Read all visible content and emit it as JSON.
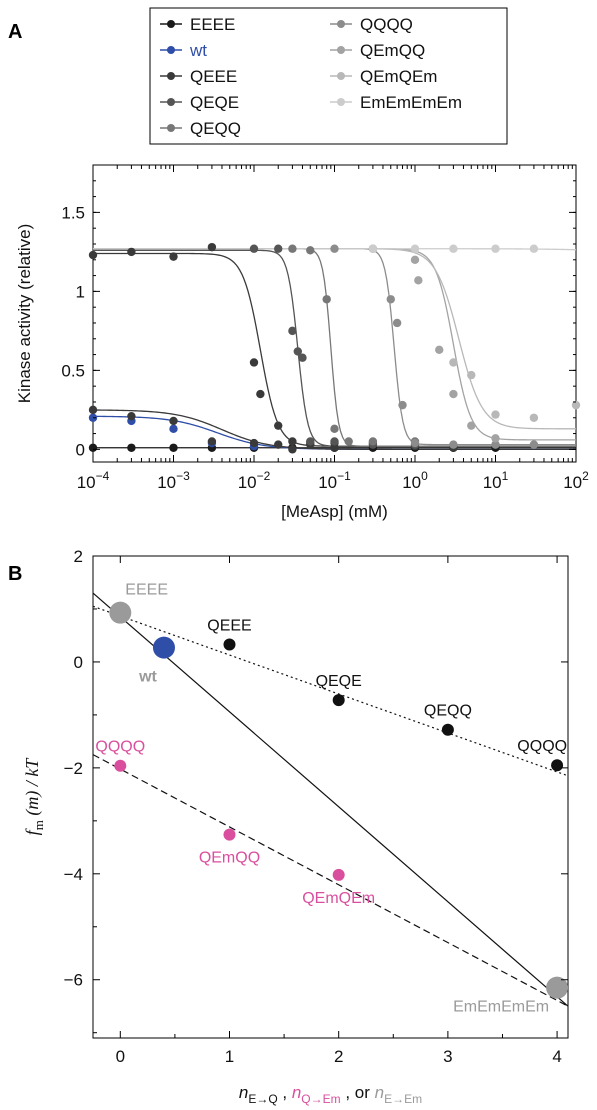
{
  "panels": {
    "a": "A",
    "b": "B"
  },
  "chart_data": [
    {
      "type": "line",
      "panel": "A",
      "xscale": "log",
      "xlim": [
        0.0001,
        100
      ],
      "ylim": [
        -0.08,
        1.8
      ],
      "xlabel": "[MeAsp] (mM)",
      "ylabel": "Kinase activity (relative)",
      "xticks": [
        0.0001,
        0.001,
        0.01,
        0.1,
        1,
        10,
        100
      ],
      "xtick_labels": [
        {
          "base": "10",
          "exp": "−4"
        },
        {
          "base": "10",
          "exp": "−3"
        },
        {
          "base": "10",
          "exp": "−2"
        },
        {
          "base": "10",
          "exp": "−1"
        },
        {
          "base": "10",
          "exp": "0"
        },
        {
          "base": "10",
          "exp": "1"
        },
        {
          "base": "10",
          "exp": "2"
        }
      ],
      "yticks": [
        0,
        0.5,
        1,
        1.5
      ],
      "ytick_labels": [
        "0",
        "0.5",
        "1",
        "1.5"
      ],
      "legend_position": "top",
      "series": [
        {
          "name": "EEEE",
          "color": "#1a1a1a",
          "curve": {
            "A0": 0.01,
            "A1": 0.01,
            "K": 1,
            "n": 1
          },
          "points": [
            [
              0.0001,
              0.01
            ],
            [
              0.0003,
              0.01
            ],
            [
              0.001,
              0.01
            ],
            [
              0.003,
              0.01
            ],
            [
              0.01,
              0.01
            ],
            [
              0.03,
              0.01
            ],
            [
              0.1,
              0.01
            ],
            [
              0.3,
              0.01
            ],
            [
              1,
              0.01
            ],
            [
              3,
              0.01
            ],
            [
              10,
              0.01
            ]
          ]
        },
        {
          "name": "wt",
          "color": "#2f4ea8",
          "curve": {
            "A0": 0.21,
            "A1": 0.0,
            "K": 0.0035,
            "n": 1.5
          },
          "points": [
            [
              0.0001,
              0.2
            ],
            [
              0.0003,
              0.18
            ],
            [
              0.001,
              0.13
            ],
            [
              0.003,
              0.04
            ],
            [
              0.01,
              0.02
            ]
          ]
        },
        {
          "name": "QEEE",
          "color": "#3a3a3a",
          "curve": {
            "A0": 0.25,
            "A1": 0.0,
            "K": 0.004,
            "n": 1.5
          },
          "points": [
            [
              0.0001,
              0.25
            ],
            [
              0.0003,
              0.21
            ],
            [
              0.001,
              0.18
            ],
            [
              0.003,
              0.05
            ],
            [
              0.01,
              0.04
            ],
            [
              0.02,
              0.03
            ],
            [
              0.03,
              0.0
            ],
            [
              0.05,
              0.03
            ],
            [
              0.1,
              0.01
            ],
            [
              0.3,
              0.04
            ],
            [
              1,
              0.02
            ],
            [
              3,
              0.01
            ]
          ],
          "curve2": {
            "A0": 1.24,
            "A1": 0.02,
            "K": 0.012,
            "n": 4
          },
          "points2": [
            [
              0.0001,
              1.23
            ],
            [
              0.0003,
              1.25
            ],
            [
              0.001,
              1.22
            ],
            [
              0.003,
              1.28
            ],
            [
              0.01,
              0.55
            ],
            [
              0.012,
              0.35
            ],
            [
              0.02,
              0.15
            ],
            [
              0.03,
              0.05
            ],
            [
              0.05,
              0.04
            ],
            [
              0.1,
              0.04
            ]
          ]
        },
        {
          "name": "QEQE",
          "color": "#555555",
          "curve": {
            "A0": 1.26,
            "A1": 0.02,
            "K": 0.035,
            "n": 7
          },
          "points": [
            [
              0.01,
              1.27
            ],
            [
              0.02,
              1.27
            ],
            [
              0.03,
              0.75
            ],
            [
              0.035,
              0.62
            ],
            [
              0.04,
              0.58
            ],
            [
              0.05,
              0.05
            ],
            [
              0.1,
              0.05
            ],
            [
              0.3,
              0.03
            ],
            [
              1,
              0.03
            ]
          ]
        },
        {
          "name": "QEQQ",
          "color": "#777777",
          "curve": {
            "A0": 1.27,
            "A1": 0.02,
            "K": 0.09,
            "n": 9
          },
          "points": [
            [
              0.03,
              1.27
            ],
            [
              0.05,
              1.26
            ],
            [
              0.08,
              0.95
            ],
            [
              0.1,
              0.13
            ],
            [
              0.15,
              0.05
            ],
            [
              0.3,
              0.05
            ],
            [
              1,
              0.05
            ]
          ]
        },
        {
          "name": "QQQQ",
          "color": "#8c8c8c",
          "curve": {
            "A0": 1.27,
            "A1": 0.03,
            "K": 0.55,
            "n": 8
          },
          "points": [
            [
              0.1,
              1.27
            ],
            [
              0.3,
              1.27
            ],
            [
              0.5,
              0.95
            ],
            [
              0.6,
              0.8
            ],
            [
              0.7,
              0.28
            ],
            [
              1,
              0.04
            ],
            [
              3,
              0.03
            ],
            [
              10,
              0.03
            ],
            [
              30,
              0.03
            ]
          ]
        },
        {
          "name": "QEmQQ",
          "color": "#a3a3a3",
          "curve": {
            "A0": 1.27,
            "A1": 0.06,
            "K": 3,
            "n": 4
          },
          "points": [
            [
              1,
              1.2
            ],
            [
              1.1,
              1.07
            ],
            [
              2,
              0.63
            ],
            [
              3,
              0.35
            ],
            [
              5,
              0.15
            ],
            [
              10,
              0.07
            ]
          ]
        },
        {
          "name": "QEmQEm",
          "color": "#b8b8b8",
          "curve": {
            "A0": 1.27,
            "A1": 0.13,
            "K": 3.5,
            "n": 3
          },
          "points": [
            [
              3,
              0.55
            ],
            [
              5,
              0.47
            ],
            [
              10,
              0.22
            ],
            [
              30,
              0.2
            ],
            [
              100,
              0.28
            ]
          ]
        },
        {
          "name": "EmEmEmEm",
          "color": "#cccccc",
          "curve": {
            "A0": 1.27,
            "A1": 1.2,
            "K": 1000,
            "n": 1
          },
          "points": [
            [
              0.3,
              1.27
            ],
            [
              1,
              1.27
            ],
            [
              3,
              1.27
            ],
            [
              10,
              1.27
            ],
            [
              30,
              1.27
            ]
          ]
        }
      ]
    },
    {
      "type": "scatter",
      "panel": "B",
      "xlim": [
        -0.25,
        4.1
      ],
      "ylim": [
        -7.1,
        2
      ],
      "xticks": [
        0,
        1,
        2,
        3,
        4
      ],
      "xtick_labels": [
        "0",
        "1",
        "2",
        "3",
        "4"
      ],
      "yticks": [
        -6,
        -4,
        -2,
        0,
        2
      ],
      "ytick_labels": [
        "−6",
        "−4",
        "−2",
        "0",
        "2"
      ],
      "ylabel": {
        "f": "f",
        "sub": "m",
        "rest": " (m) / kT"
      },
      "xlabel": {
        "n1": "n",
        "sub1": "E→Q",
        "sep1": " , ",
        "n2": "n",
        "sub2": "Q→Em",
        "sep2": " , or ",
        "n3": "n",
        "sub3": "E→Em"
      },
      "x_colors": {
        "black": "#111111",
        "pink": "#d94f9e",
        "gray": "#9a9a9a"
      },
      "lines": [
        {
          "style": "solid",
          "from": [
            -0.25,
            1.3
          ],
          "to": [
            4.1,
            -6.5
          ]
        },
        {
          "style": "dotted",
          "from": [
            -0.25,
            1.05
          ],
          "to": [
            4.1,
            -2.15
          ]
        },
        {
          "style": "dashed",
          "from": [
            -0.25,
            -1.75
          ],
          "to": [
            4.1,
            -6.5
          ]
        }
      ],
      "points": [
        {
          "label": "EEEE",
          "x": 0,
          "y": 0.93,
          "size": "large",
          "color": "#9a9a9a",
          "label_pos": "above-right"
        },
        {
          "label": "wt",
          "x": 0.4,
          "y": 0.27,
          "size": "large",
          "color": "#2f4ea8",
          "label_text_color": "#9a9a9a",
          "label_pos": "below-left"
        },
        {
          "label": "QEEE",
          "x": 1,
          "y": 0.33,
          "size": "small",
          "color": "#111111",
          "label_pos": "above"
        },
        {
          "label": "QEQE",
          "x": 2,
          "y": -0.72,
          "size": "small",
          "color": "#111111",
          "label_pos": "above"
        },
        {
          "label": "QEQQ",
          "x": 3,
          "y": -1.28,
          "size": "small",
          "color": "#111111",
          "label_pos": "above"
        },
        {
          "label": "QQQQ",
          "x": 4,
          "y": -1.95,
          "size": "small",
          "color": "#111111",
          "label_pos": "above-left"
        },
        {
          "label": "QQQQ",
          "x": 0,
          "y": -1.96,
          "size": "small",
          "color": "#d94f9e",
          "label_pos": "above"
        },
        {
          "label": "QEmQQ",
          "x": 1,
          "y": -3.26,
          "size": "small",
          "color": "#d94f9e",
          "label_pos": "below"
        },
        {
          "label": "QEmQEm",
          "x": 2,
          "y": -4.02,
          "size": "small",
          "color": "#d94f9e",
          "label_pos": "below"
        },
        {
          "label": "EmEmEmEm",
          "x": 4,
          "y": -6.15,
          "size": "large",
          "color": "#9a9a9a",
          "label_pos": "below-left"
        }
      ]
    }
  ]
}
